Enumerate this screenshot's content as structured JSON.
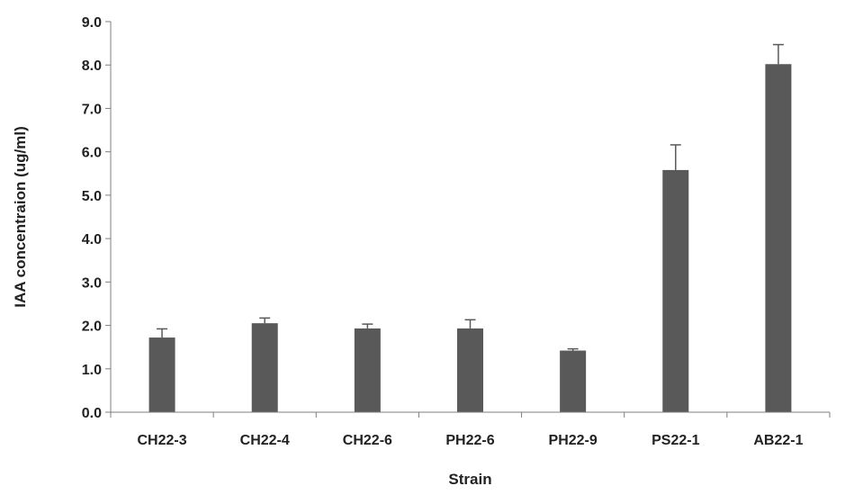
{
  "chart_data": {
    "type": "bar",
    "title": "",
    "xlabel": "Strain",
    "ylabel": "IAA concentraion  (ug/ml)",
    "categories": [
      "CH22-3",
      "CH22-4",
      "CH22-6",
      "PH22-6",
      "PH22-9",
      "PS22-1",
      "AB22-1"
    ],
    "values": [
      1.72,
      2.05,
      1.93,
      1.93,
      1.42,
      5.58,
      8.02
    ],
    "errors": [
      0.2,
      0.12,
      0.1,
      0.2,
      0.04,
      0.58,
      0.45
    ],
    "ylim": [
      0,
      9
    ],
    "yticks": [
      "0.0",
      "1.0",
      "2.0",
      "3.0",
      "4.0",
      "5.0",
      "6.0",
      "7.0",
      "8.0",
      "9.0"
    ],
    "grid": false,
    "legend": "none",
    "colors": {
      "bar": "#595959",
      "axis": "#7f7f7f",
      "error": "#595959"
    }
  }
}
